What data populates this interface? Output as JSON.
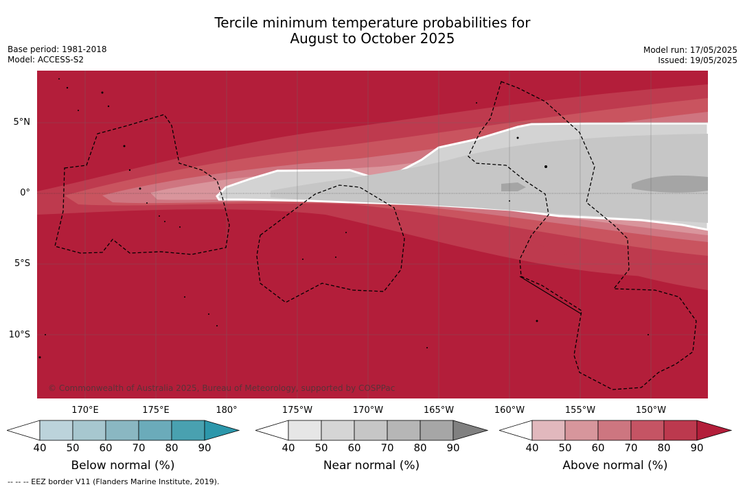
{
  "title": {
    "line1": "Tercile minimum temperature probabilities for",
    "line2": "August to October 2025"
  },
  "meta_left": {
    "base_period": "Base period: 1981-2018",
    "model": "Model: ACCESS-S2"
  },
  "meta_right": {
    "model_run": "Model run: 17/05/2025",
    "issued": "Issued: 19/05/2025"
  },
  "map": {
    "lat_labels": [
      "5°N",
      "0°",
      "5°S",
      "10°S"
    ],
    "lon_labels": [
      "170°E",
      "175°E",
      "180°",
      "175°W",
      "170°W",
      "165°W",
      "160°W",
      "155°W",
      "150°W"
    ],
    "copyright": "© Commonwealth of Australia 2025, Bureau of Meteorology, supported by COSPPac",
    "colors": {
      "above_90": "#b31e3a",
      "above_80": "#be3a4e",
      "above_70": "#c9545f",
      "above_60": "#cf7580",
      "above_50": "#d9959c",
      "near_50": "#d3d3d3",
      "near_60": "#c6c6c6",
      "near_70": "#a5a5a5",
      "border": "#000000"
    }
  },
  "colorbars": [
    {
      "name": "below-normal",
      "label": "Below normal (%)",
      "ticks": [
        "40",
        "50",
        "60",
        "70",
        "80",
        "90"
      ],
      "colors": [
        "#bcd3db",
        "#a7c7cf",
        "#8ab7c2",
        "#6babba",
        "#49a1b0",
        "#2c97ab"
      ]
    },
    {
      "name": "near-normal",
      "label": "Near normal (%)",
      "ticks": [
        "40",
        "50",
        "60",
        "70",
        "80",
        "90"
      ],
      "colors": [
        "#e6e6e6",
        "#d5d5d5",
        "#c6c6c6",
        "#b6b6b6",
        "#a6a6a6",
        "#808080"
      ]
    },
    {
      "name": "above-normal",
      "label": "Above normal (%)",
      "ticks": [
        "40",
        "50",
        "60",
        "70",
        "80",
        "90"
      ],
      "colors": [
        "#e1b8bd",
        "#d7969c",
        "#cd7680",
        "#c55464",
        "#bc394e",
        "#b31e3a"
      ]
    }
  ],
  "footnote": "--  --  -- EEZ border V11 (Flanders Marine Institute, 2019)."
}
